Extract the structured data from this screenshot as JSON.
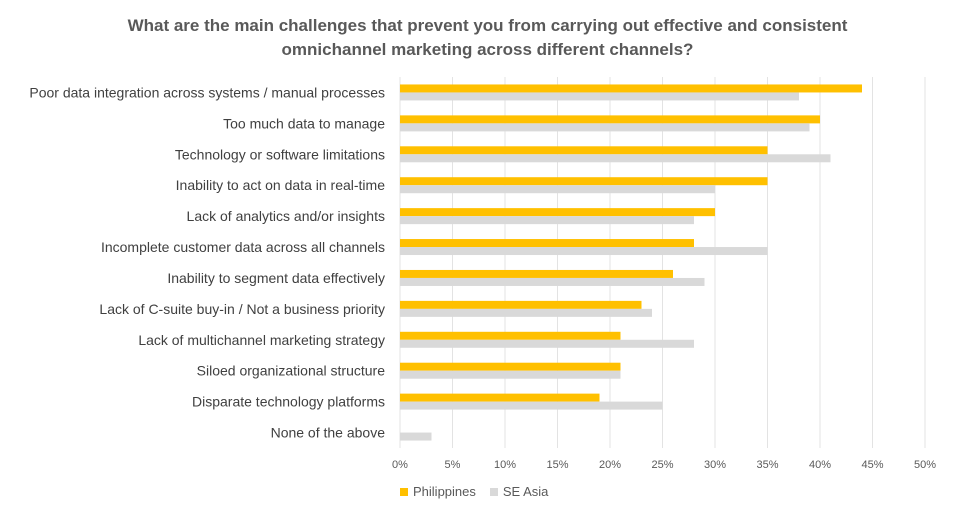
{
  "chart_data": {
    "type": "bar",
    "orientation": "horizontal",
    "title": [
      "What are the main challenges that prevent you from carrying out effective and consistent",
      "omnichannel marketing across different channels?"
    ],
    "categories": [
      "Poor data integration across systems / manual processes",
      "Too much data to manage",
      "Technology or software limitations",
      "Inability to act on data in real-time",
      "Lack of analytics and/or insights",
      "Incomplete customer data across all channels",
      "Inability to segment data effectively",
      "Lack of C-suite buy-in / Not a business priority",
      "Lack of multichannel marketing strategy",
      "Siloed organizational structure",
      "Disparate technology platforms",
      "None of the above"
    ],
    "series": [
      {
        "name": "Philippines",
        "color": "#FFC000",
        "values": [
          44,
          40,
          35,
          35,
          30,
          28,
          26,
          23,
          21,
          21,
          19,
          0
        ]
      },
      {
        "name": "SE Asia",
        "color": "#D9D9D9",
        "values": [
          38,
          39,
          41,
          30,
          28,
          35,
          29,
          24,
          28,
          21,
          25,
          3
        ]
      }
    ],
    "xlim": [
      0,
      50
    ],
    "xticks": [
      "0%",
      "5%",
      "10%",
      "15%",
      "20%",
      "25%",
      "30%",
      "35%",
      "40%",
      "45%",
      "50%"
    ],
    "grid": true,
    "legend": "bottom",
    "xlabel": "",
    "ylabel": ""
  }
}
